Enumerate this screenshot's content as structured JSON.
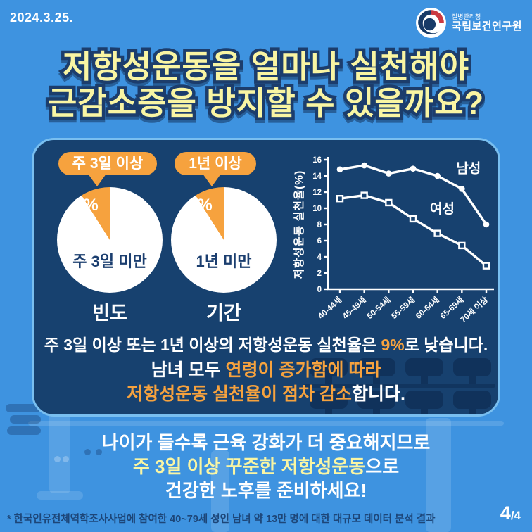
{
  "header": {
    "date": "2024.3.25.",
    "logo": {
      "org_small": "질병관리청",
      "org_large": "국립보건연구원"
    }
  },
  "title": {
    "line1": "저항성운동을 얼마나 실천해야",
    "line2": "근감소증을 방지할 수 있을까요?"
  },
  "pies": {
    "frequency": {
      "badge": "주 3일 이상",
      "slice_label": "9%",
      "main_label": "주 3일 미만",
      "caption": "빈도",
      "value_pct": 9
    },
    "duration": {
      "badge": "1년 이상",
      "slice_label": "9%",
      "main_label": "1년 미만",
      "caption": "기간",
      "value_pct": 9
    }
  },
  "chart_data": {
    "type": "line",
    "ylabel": "저항성운동 실천율(%)",
    "xlabel": "",
    "ylim": [
      0,
      16
    ],
    "yticks": [
      0,
      2,
      4,
      6,
      8,
      10,
      12,
      14,
      16
    ],
    "categories": [
      "40-44세",
      "45-49세",
      "50-54세",
      "55-59세",
      "60-64세",
      "65-69세",
      "70세 이상"
    ],
    "series": [
      {
        "name": "남성",
        "marker": "circle",
        "values": [
          14.8,
          15.3,
          14.3,
          14.9,
          14.0,
          12.4,
          8.0
        ]
      },
      {
        "name": "여성",
        "marker": "square",
        "values": [
          11.2,
          11.6,
          10.7,
          8.7,
          6.9,
          5.4,
          2.9
        ]
      }
    ],
    "grid": false,
    "legend_position": "inline"
  },
  "findings": {
    "line1_pre": "주 3일 이상 또는 1년 이상의 저항성운동 실천율은 ",
    "line1_highlight": "9%",
    "line1_post": "로 낮습니다.",
    "line2_pre": "남녀 모두 ",
    "line2_highlight": "연령이 증가함에 따라",
    "line3_highlight": "저항성운동 실천율이 점차 감소",
    "line3_post": "합니다."
  },
  "advice": {
    "line1": "나이가 들수록 근육 강화가 더 중요해지므로",
    "line2_highlight": "주 3일 이상 꾸준한 저항성운동",
    "line2_post": "으로",
    "line3": "건강한 노후를 준비하세요!"
  },
  "footer": {
    "note": "* 한국인유전체역학조사사업에 참여한 40~79세 성인 남녀 약 13만 명에 대한 대규모 데이터 분석 결과",
    "page_current": "4",
    "page_total": "/4"
  },
  "colors": {
    "background": "#3E93E0",
    "panel_navy": "#17416F",
    "accent_orange": "#F6A23E",
    "title_yellow": "#F9F5A3",
    "navy_text": "#1B3E6F",
    "white": "#FFFFFF"
  }
}
